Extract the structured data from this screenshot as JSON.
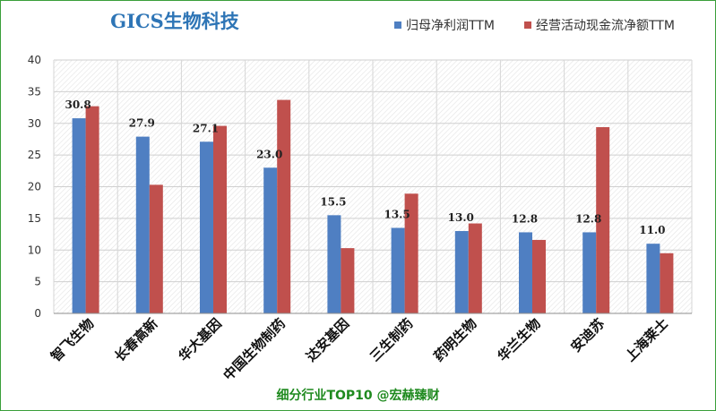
{
  "chart_data": {
    "type": "bar",
    "title": "GICS生物科技",
    "categories": [
      "智飞生物",
      "长春高新",
      "华大基因",
      "中国生物制药",
      "达安基因",
      "三生制药",
      "药明生物",
      "华兰生物",
      "安迪苏",
      "上海莱士"
    ],
    "series": [
      {
        "name": "归母净利润TTM",
        "color": "#4f7fc2",
        "values": [
          30.8,
          27.9,
          27.1,
          23.0,
          15.5,
          13.5,
          13.0,
          12.8,
          12.8,
          11.0
        ],
        "data_labels": [
          "30.8",
          "27.9",
          "27.1",
          "23.0",
          "15.5",
          "13.5",
          "13.0",
          "12.8",
          "12.8",
          "11.0"
        ]
      },
      {
        "name": "经营活动现金流净额TTM",
        "color": "#c0504d",
        "values": [
          32.7,
          20.3,
          29.6,
          33.7,
          10.3,
          18.9,
          14.2,
          11.6,
          29.4,
          9.5
        ]
      }
    ],
    "ylim": [
      0,
      40
    ],
    "yticks": [
      "0",
      "5",
      "10",
      "15",
      "20",
      "25",
      "30",
      "35",
      "40"
    ],
    "grid": true,
    "legend_position": "top-right",
    "xlabel": "",
    "ylabel": ""
  },
  "footer": "细分行业TOP10 @宏赫臻财"
}
